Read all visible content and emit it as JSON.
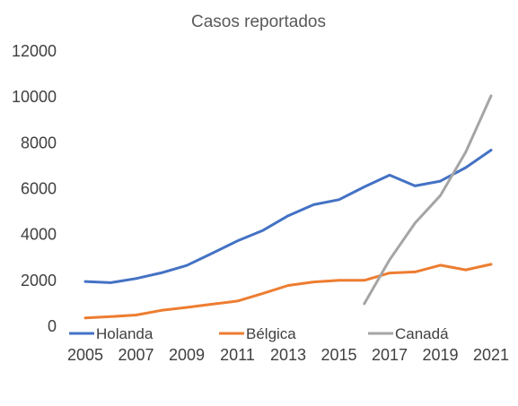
{
  "chart_data": {
    "type": "line",
    "title": "Casos reportados",
    "xlabel": "",
    "ylabel": "",
    "x": [
      2005,
      2006,
      2007,
      2008,
      2009,
      2010,
      2011,
      2012,
      2013,
      2014,
      2015,
      2016,
      2017,
      2018,
      2019,
      2020,
      2021
    ],
    "x_tick_labels": [
      "2005",
      "2007",
      "2009",
      "2011",
      "2013",
      "2015",
      "2017",
      "2019",
      "2021"
    ],
    "y_tick_labels": [
      "0",
      "2000",
      "4000",
      "6000",
      "8000",
      "10000",
      "12000"
    ],
    "ylim": [
      0,
      12000
    ],
    "grid": false,
    "legend_position": "bottom",
    "series": [
      {
        "name": "Holanda",
        "color": "#4472C4",
        "values": [
          1950,
          1900,
          2080,
          2330,
          2650,
          3180,
          3720,
          4180,
          4820,
          5300,
          5520,
          6080,
          6590,
          6120,
          6330,
          6920,
          7680
        ]
      },
      {
        "name": "Bélgica",
        "color": "#ED7D31",
        "values": [
          360,
          420,
          490,
          690,
          820,
          960,
          1100,
          1430,
          1780,
          1930,
          2000,
          2000,
          2320,
          2370,
          2660,
          2460,
          2700
        ]
      },
      {
        "name": "Canadá",
        "color": "#A5A5A5",
        "values": [
          null,
          null,
          null,
          null,
          null,
          null,
          null,
          null,
          null,
          null,
          null,
          980,
          2900,
          4500,
          5700,
          7600,
          10050
        ]
      }
    ]
  }
}
